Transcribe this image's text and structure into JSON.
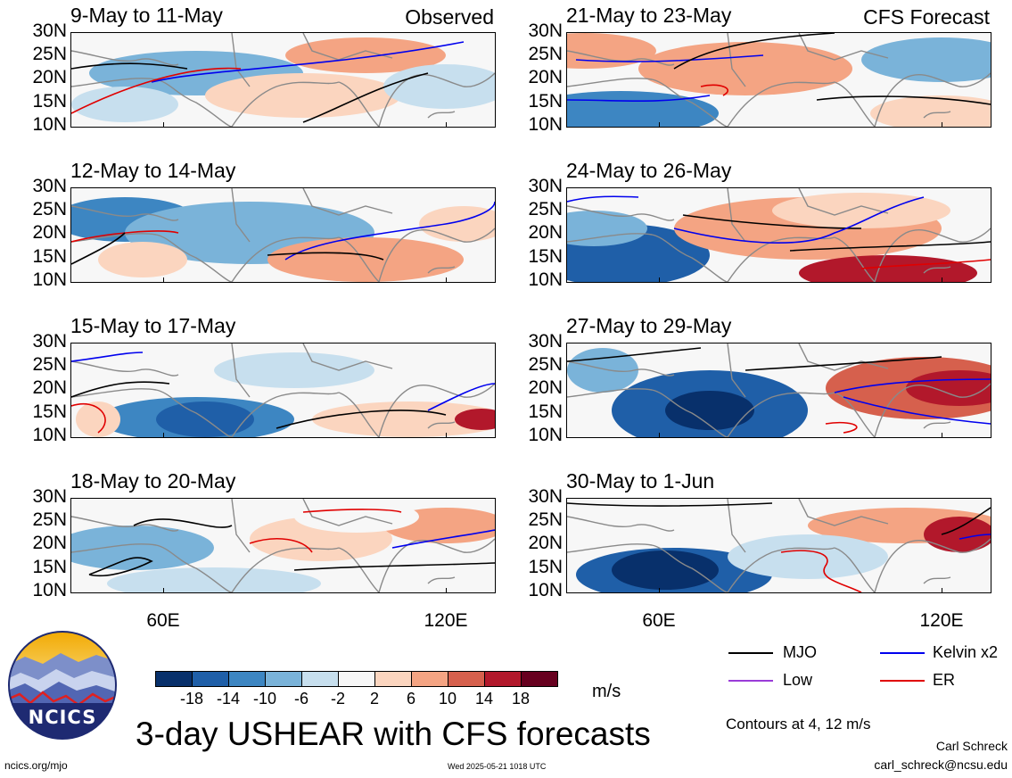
{
  "observed_label": "Observed",
  "forecast_label": "CFS Forecast",
  "lat_labels": [
    "30N",
    "25N",
    "20N",
    "15N",
    "10N"
  ],
  "lon_labels": [
    "60E",
    "120E"
  ],
  "panels_left": [
    {
      "title": "9-May to 11-May"
    },
    {
      "title": "12-May to 14-May"
    },
    {
      "title": "15-May to 17-May"
    },
    {
      "title": "18-May to 20-May"
    }
  ],
  "panels_right": [
    {
      "title": "21-May to 23-May"
    },
    {
      "title": "24-May to 26-May"
    },
    {
      "title": "27-May to 29-May"
    },
    {
      "title": "30-May to 1-Jun"
    }
  ],
  "colorbar": {
    "labels": [
      "-18",
      "-14",
      "-10",
      "-6",
      "-2",
      "2",
      "6",
      "10",
      "14",
      "18"
    ],
    "colors": [
      "#08306b",
      "#1f5fa8",
      "#3d86c2",
      "#7ab3d9",
      "#c7dfee",
      "#f7f7f7",
      "#fbd5bf",
      "#f4a483",
      "#d6604d",
      "#b2182b",
      "#67001f"
    ],
    "units": "m/s"
  },
  "title": "3-day USHEAR with CFS forecasts",
  "legend": [
    {
      "label": "MJO",
      "color": "#000000"
    },
    {
      "label": "Kelvin x2",
      "color": "#0000ee"
    },
    {
      "label": "Low",
      "color": "#9a3cd8"
    },
    {
      "label": "ER",
      "color": "#e00000"
    }
  ],
  "contour_note": "Contours at 4, 12 m/s",
  "logo_text": "NCICS",
  "site": "ncics.org/mjo",
  "timestamp": "Wed 2025-05-21 1018 UTC",
  "author": "Carl Schreck",
  "email": "carl_schreck@ncsu.edu"
}
